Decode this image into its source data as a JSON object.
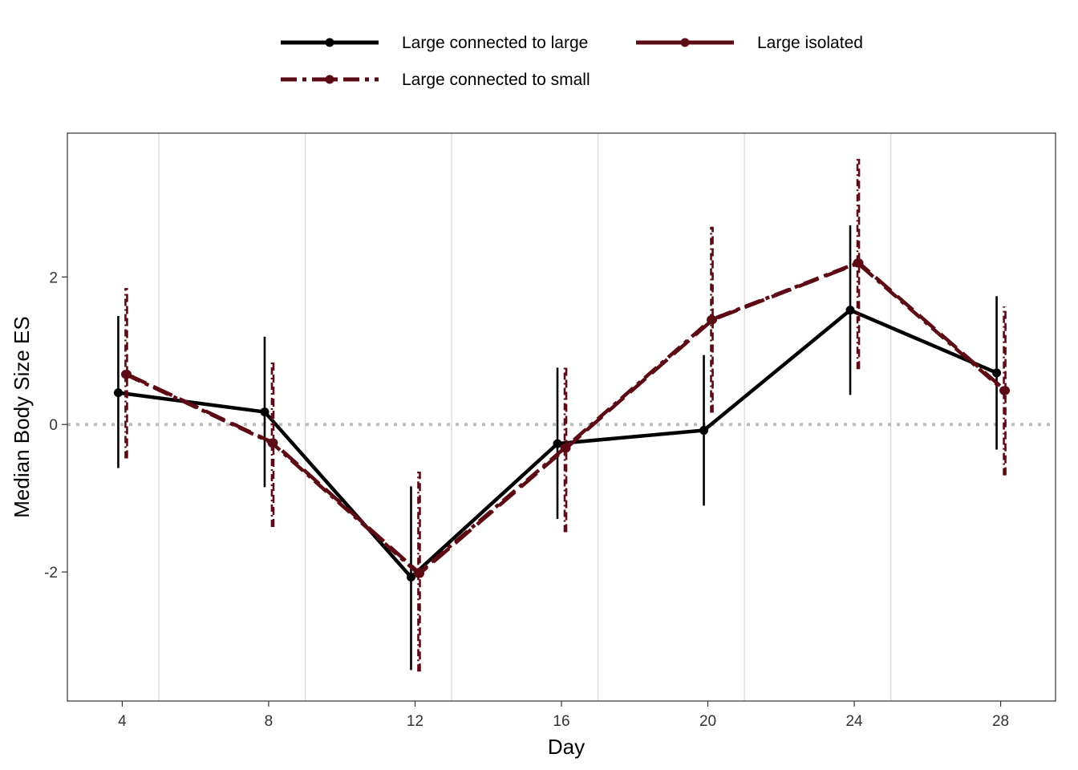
{
  "chart_data": {
    "type": "line",
    "xlabel": "Day",
    "ylabel": "Median Body Size ES",
    "x": [
      4,
      8,
      12,
      16,
      20,
      24,
      28
    ],
    "xlim": [
      2.5,
      29.5
    ],
    "ylim": [
      -3.75,
      3.95
    ],
    "x_ticks": [
      4,
      8,
      12,
      16,
      20,
      24,
      28
    ],
    "y_ticks": [
      -2,
      0,
      2
    ],
    "y_tick_labels": [
      "-2",
      "0",
      "2"
    ],
    "reference_line": 0,
    "vertical_gridlines": [
      5,
      9,
      13,
      17,
      21,
      25
    ],
    "legend_position": "top",
    "series": [
      {
        "name": "Large connected to large",
        "color": "#000000",
        "linestyle": "solid",
        "values": [
          0.43,
          0.17,
          -2.07,
          -0.26,
          -0.08,
          1.55,
          0.7
        ],
        "lower": [
          -0.59,
          -0.85,
          -3.33,
          -1.28,
          -1.1,
          0.4,
          -0.34
        ],
        "upper": [
          1.47,
          1.19,
          -0.84,
          0.77,
          0.94,
          2.7,
          1.74
        ]
      },
      {
        "name": "Large isolated",
        "color": "#5c0a14",
        "linestyle": "longdash",
        "values": [
          0.68,
          -0.25,
          -2.02,
          -0.32,
          1.42,
          2.19,
          0.46
        ],
        "lower": [
          -0.46,
          -1.39,
          -3.35,
          -1.46,
          0.16,
          0.75,
          -0.69
        ],
        "upper": [
          1.85,
          0.87,
          -0.64,
          0.81,
          2.68,
          3.6,
          1.6
        ]
      },
      {
        "name": "Large connected to small",
        "color": "#5c0a14",
        "linestyle": "dashdot",
        "values": [
          0.68,
          -0.25,
          -2.02,
          -0.32,
          1.42,
          2.19,
          0.46
        ],
        "lower": [
          -0.46,
          -1.39,
          -3.35,
          -1.46,
          0.16,
          0.75,
          -0.69
        ],
        "upper": [
          1.85,
          0.87,
          -0.64,
          0.81,
          2.68,
          3.6,
          1.6
        ]
      }
    ]
  }
}
